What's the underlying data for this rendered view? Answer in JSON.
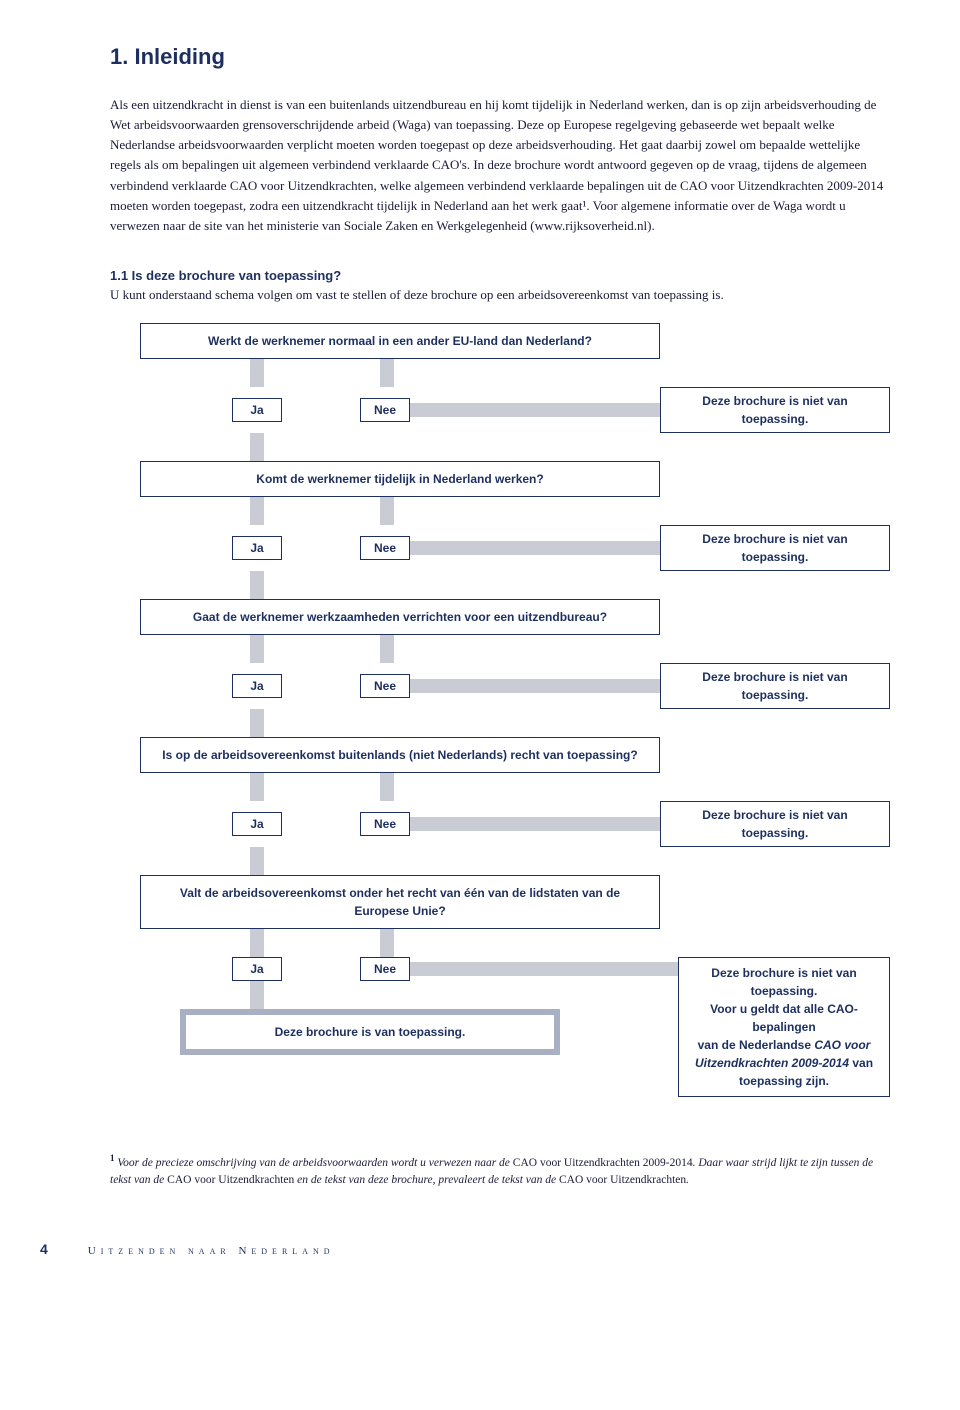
{
  "heading": "1. Inleiding",
  "intro": "Als een uitzendkracht in dienst is van een buitenlands uitzendbureau en hij komt tijdelijk in Nederland werken, dan is op zijn arbeidsverhouding de Wet arbeidsvoorwaarden grensoverschrijdende arbeid (Waga) van toepassing. Deze op Europese regelgeving gebaseerde wet bepaalt welke Nederlandse arbeidsvoorwaarden verplicht moeten worden toegepast op deze arbeidsverhouding. Het gaat daarbij zowel om bepaalde wettelijke regels als om bepalingen uit algemeen verbindend verklaarde CAO's. In deze brochure wordt antwoord gegeven op de vraag, tijdens de algemeen verbindend verklaarde CAO voor Uitzendkrachten, welke algemeen verbindend verklaarde bepalingen uit de CAO voor Uitzendkrachten 2009-2014 moeten worden toegepast, zodra een uitzendkracht tijdelijk in Nederland aan het werk gaat¹. Voor algemene informatie over de Waga wordt u verwezen naar de site van het ministerie van Sociale Zaken en Werkgelegenheid (www.rijksoverheid.nl).",
  "section_title": "1.1 Is deze brochure van toepassing?",
  "section_text": "U kunt onderstaand schema volgen om vast te stellen of deze brochure op een arbeidsovereenkomst van toepassing is.",
  "q1": "Werkt de werknemer normaal in een ander EU-land dan Nederland?",
  "q2": "Komt de werknemer tijdelijk in Nederland werken?",
  "q3": "Gaat de werknemer werkzaamheden verrichten voor een uitzendbureau?",
  "q4": "Is op de arbeidsovereenkomst buitenlands (niet Nederlands) recht van toepassing?",
  "q5": "Valt de arbeidsovereenkomst onder het recht van één van de lidstaten van de Europese Unie?",
  "ja": "Ja",
  "nee": "Nee",
  "not_apply": "Deze brochure is niet van toepassing.",
  "apply": "Deze brochure is van toepassing.",
  "final_ext_line1": "Deze brochure is niet van toepassing.",
  "final_ext_line2a": "Voor u geldt dat alle CAO-bepalingen",
  "final_ext_line2b": "van de Nederlandse ",
  "final_ext_line2c": "CAO voor",
  "final_ext_line3a": "Uitzendkrachten 2009-2014",
  "final_ext_line3b": " van",
  "final_ext_line4": "toepassing zijn.",
  "footnote_sup": "1",
  "footnote_a": " Voor de precieze omschrijving van de arbeidsvoorwaarden wordt u verwezen naar de ",
  "footnote_b": "CAO voor Uitzendkrachten 2009-2014",
  "footnote_c": ". Daar waar strijd lijkt te zijn tussen de tekst van de ",
  "footnote_d": "CAO voor Uitzendkrachten",
  "footnote_e": " en de tekst van deze brochure, prevaleert de tekst van de ",
  "footnote_f": "CAO voor Uitzendkrachten",
  "footnote_g": ".",
  "page_number": "4",
  "footer_title": "Uitzenden naar Nederland"
}
